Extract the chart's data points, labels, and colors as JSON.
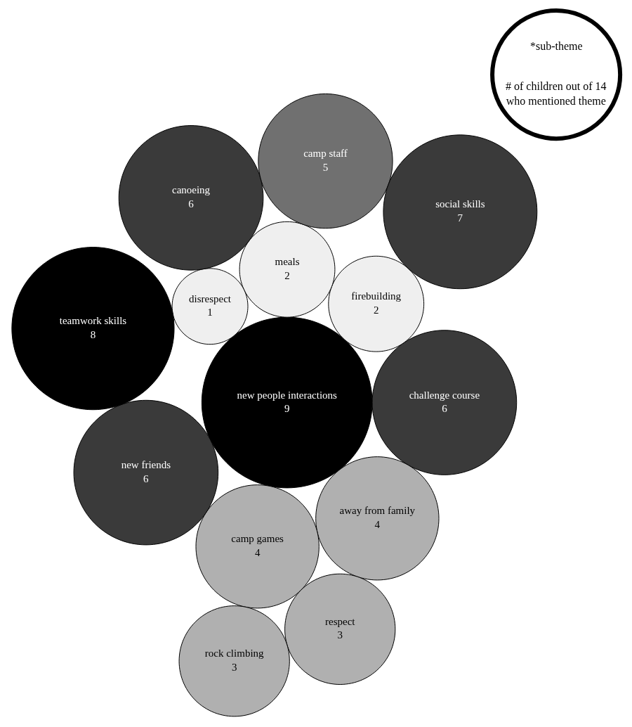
{
  "chart_data": {
    "type": "other",
    "categories": [
      "new people interactions",
      "challenge course",
      "firebuilding",
      "meals",
      "disrespect",
      "away from family",
      "camp games",
      "new friends",
      "canoeing",
      "camp staff",
      "respect",
      "rock climbing",
      "teamwork skills",
      "social skills"
    ],
    "values": [
      9,
      6,
      2,
      2,
      1,
      4,
      4,
      6,
      6,
      5,
      3,
      3,
      8,
      7
    ],
    "colors": [
      "#000000",
      "#3a3a3a",
      "#efefef",
      "#efefef",
      "#efefef",
      "#b0b0b0",
      "#b0b0b0",
      "#3a3a3a",
      "#3a3a3a",
      "#707070",
      "#b0b0b0",
      "#b0b0b0",
      "#000000",
      "#3a3a3a"
    ],
    "data_labels": true,
    "annotations": [
      "*sub-theme",
      "# of children out of 14 who mentioned theme"
    ]
  }
}
